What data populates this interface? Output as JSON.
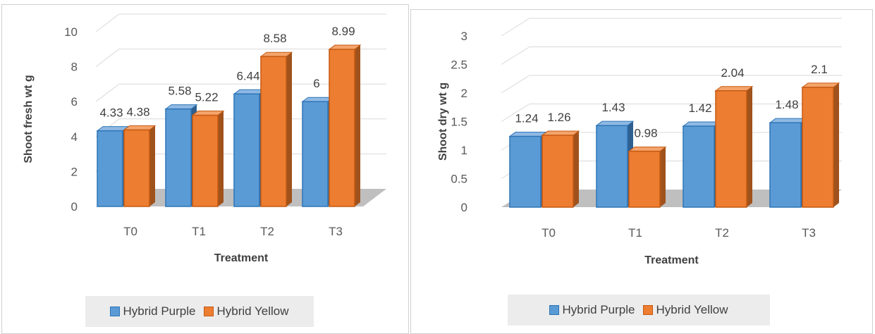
{
  "colors": {
    "purple_series": "#5b9bd5",
    "yellow_series": "#ed7d31"
  },
  "chart_data": [
    {
      "type": "bar",
      "categories": [
        "T0",
        "T1",
        "T2",
        "T3"
      ],
      "series": [
        {
          "name": "Hybrid Purple",
          "values": [
            4.33,
            5.58,
            6.44,
            6
          ]
        },
        {
          "name": "Hybrid Yellow",
          "values": [
            4.38,
            5.22,
            8.58,
            8.99
          ]
        }
      ],
      "data_labels": [
        [
          "4.33",
          "5.58",
          "6.44",
          "6"
        ],
        [
          "4.38",
          "5.22",
          "8.58",
          "8.99"
        ]
      ],
      "y_ticks": [
        "0",
        "2",
        "4",
        "6",
        "8",
        "10"
      ],
      "xlabel": "Treatment",
      "ylabel": "Shoot fresh wt g",
      "ylim": [
        0,
        10
      ],
      "grid": true,
      "legend": "bottom",
      "style": "3d-column"
    },
    {
      "type": "bar",
      "categories": [
        "T0",
        "T1",
        "T2",
        "T3"
      ],
      "series": [
        {
          "name": "Hybrid Purple",
          "values": [
            1.24,
            1.43,
            1.42,
            1.48
          ]
        },
        {
          "name": "Hybrid Yellow",
          "values": [
            1.26,
            0.98,
            2.04,
            2.1
          ]
        }
      ],
      "data_labels": [
        [
          "1.24",
          "1.43",
          "1.42",
          "1.48"
        ],
        [
          "1.26",
          "0.98",
          "2.04",
          "2.1"
        ]
      ],
      "y_ticks": [
        "0",
        "0.5",
        "1",
        "1.5",
        "2",
        "2.5",
        "3"
      ],
      "xlabel": "Treatment",
      "ylabel": "Shoot dry wt g",
      "ylim": [
        0,
        3
      ],
      "grid": true,
      "legend": "bottom",
      "style": "3d-column"
    }
  ]
}
